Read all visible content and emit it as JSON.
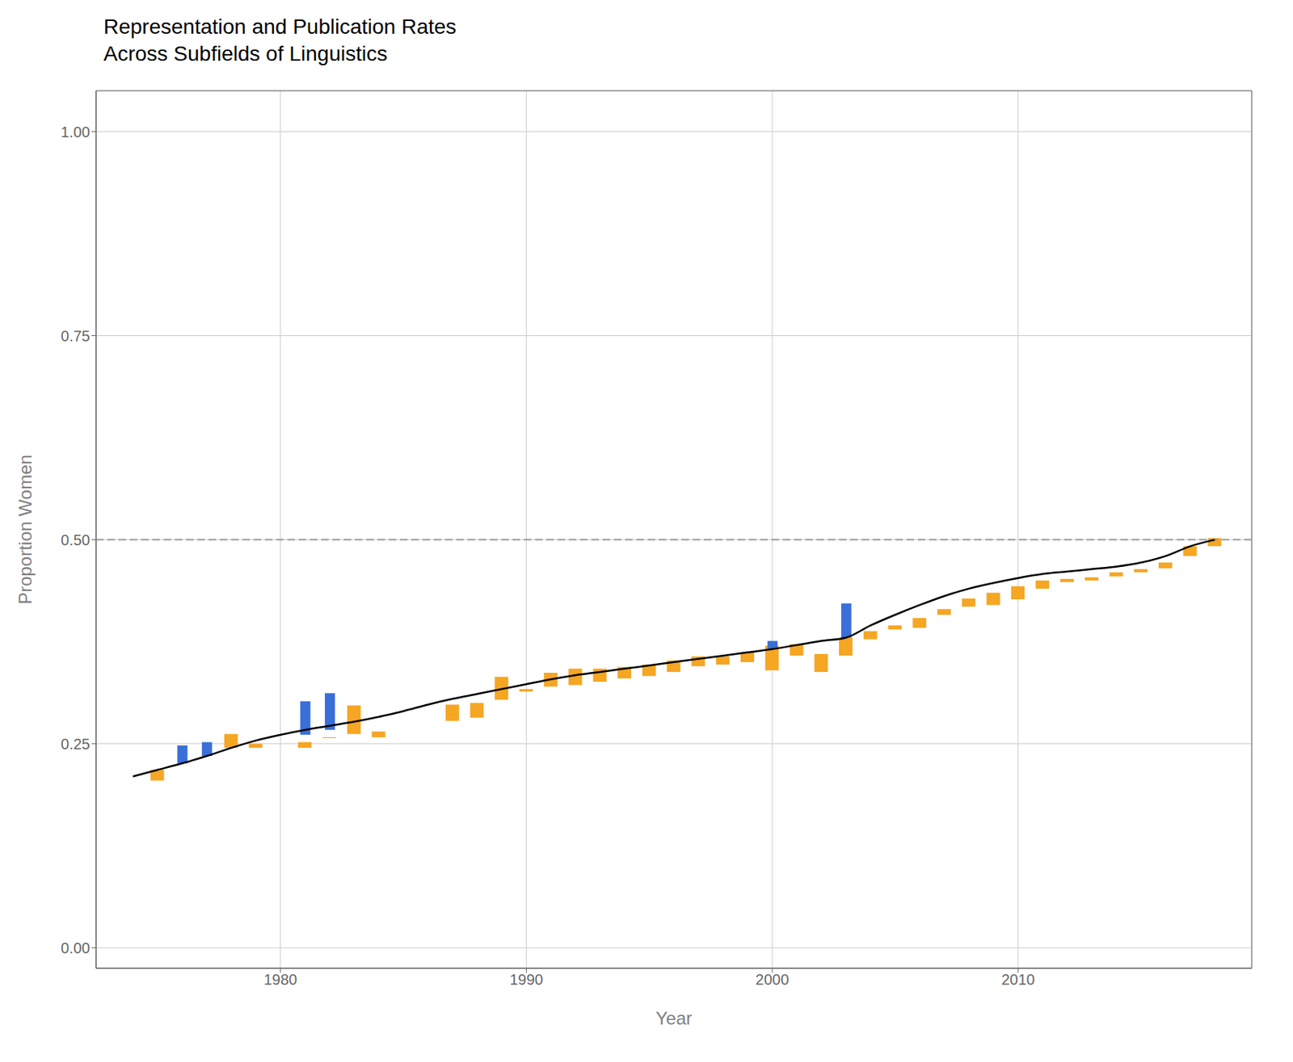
{
  "chart_data": {
    "type": "bar",
    "title": "Representation and Publication Rates\nAcross Subfields of Linguistics",
    "x_label": "Year",
    "y_label": "Proportion Women",
    "xlim": [
      1972.5,
      2019.5
    ],
    "xticks": [
      1980,
      1990,
      2000,
      2010
    ],
    "ylim": [
      -0.025,
      1.05
    ],
    "yticks": [
      {
        "value": 0.0,
        "label": "0.00"
      },
      {
        "value": 0.25,
        "label": "0.25"
      },
      {
        "value": 0.5,
        "label": "0.50"
      },
      {
        "value": 0.75,
        "label": "0.75"
      },
      {
        "value": 1.0,
        "label": "1.00"
      }
    ],
    "grid": true,
    "series": [
      {
        "type": "line",
        "color": "#000000",
        "x": [
          1974,
          1975,
          1976,
          1977,
          1978,
          1979,
          1980,
          1981,
          1982,
          1983,
          1984,
          1985,
          1986,
          1987,
          1988,
          1989,
          1990,
          1991,
          1992,
          1993,
          1994,
          1995,
          1996,
          1997,
          1998,
          1999,
          2000,
          2001,
          2002,
          2003,
          2004,
          2005,
          2006,
          2007,
          2008,
          2009,
          2010,
          2011,
          2012,
          2013,
          2014,
          2015,
          2016,
          2017,
          2018
        ],
        "values": [
          0.21,
          0.218,
          0.226,
          0.235,
          0.245,
          0.254,
          0.261,
          0.267,
          0.272,
          0.277,
          0.283,
          0.29,
          0.298,
          0.305,
          0.311,
          0.317,
          0.323,
          0.329,
          0.334,
          0.338,
          0.342,
          0.346,
          0.35,
          0.354,
          0.358,
          0.362,
          0.366,
          0.371,
          0.376,
          0.38,
          0.395,
          0.408,
          0.42,
          0.431,
          0.44,
          0.447,
          0.453,
          0.458,
          0.461,
          0.464,
          0.467,
          0.472,
          0.48,
          0.492,
          0.5
        ]
      },
      {
        "type": "bar",
        "color": "#F5A623",
        "x": [
          1975,
          1978,
          1979,
          1981,
          1982,
          1983,
          1984,
          1987,
          1988,
          1989,
          1990,
          1991,
          1992,
          1993,
          1994,
          1995,
          1996,
          1997,
          1998,
          1999,
          2000,
          2001,
          2002,
          2003,
          2004,
          2005,
          2006,
          2007,
          2008,
          2009,
          2010,
          2011,
          2012,
          2013,
          2014,
          2015,
          2016,
          2017,
          2018
        ],
        "y_top": [
          0.205,
          0.262,
          0.25,
          0.252,
          0.258,
          0.297,
          0.265,
          0.278,
          0.282,
          0.332,
          0.317,
          0.337,
          0.342,
          0.342,
          0.344,
          0.347,
          0.352,
          0.357,
          0.357,
          0.362,
          0.37,
          0.372,
          0.338,
          0.38,
          0.388,
          0.39,
          0.392,
          0.415,
          0.418,
          0.42,
          0.427,
          0.45,
          0.452,
          0.454,
          0.46,
          0.464,
          0.472,
          0.492,
          0.502
        ],
        "y_bot": [
          0.218,
          0.245,
          0.245,
          0.245,
          0.257,
          0.262,
          0.258,
          0.298,
          0.3,
          0.304,
          0.314,
          0.32,
          0.322,
          0.326,
          0.33,
          0.333,
          0.338,
          0.345,
          0.347,
          0.35,
          0.34,
          0.358,
          0.36,
          0.358,
          0.378,
          0.395,
          0.404,
          0.408,
          0.428,
          0.435,
          0.443,
          0.44,
          0.448,
          0.45,
          0.455,
          0.46,
          0.465,
          0.48,
          0.492
        ]
      },
      {
        "type": "bar",
        "color": "#3A6FD8",
        "x": [
          1976,
          1977,
          1981,
          1982,
          2000,
          2003
        ],
        "y_top": [
          0.248,
          0.252,
          0.302,
          0.312,
          0.376,
          0.422
        ],
        "y_bot": [
          0.226,
          0.235,
          0.261,
          0.267,
          0.366,
          0.38
        ]
      }
    ],
    "reference_lines": [
      {
        "y": 0.5,
        "color": "#999999",
        "line_style": "dashed"
      }
    ]
  }
}
